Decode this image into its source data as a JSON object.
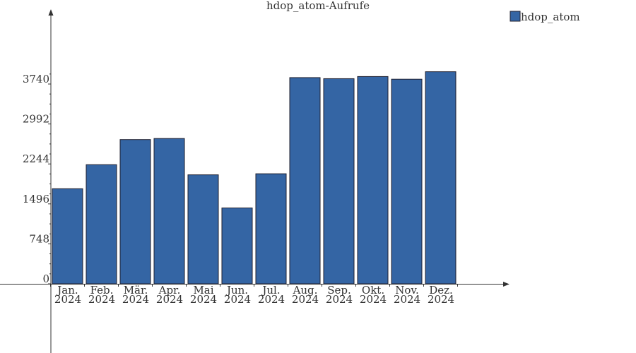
{
  "chart_data": {
    "type": "bar",
    "title": "hdop_atom-Aufrufe",
    "xlabel": "",
    "ylabel": "",
    "categories": [
      [
        "Jan.",
        "2024"
      ],
      [
        "Feb.",
        "2024"
      ],
      [
        "Mär.",
        "2024"
      ],
      [
        "Apr.",
        "2024"
      ],
      [
        "Mai",
        "2024"
      ],
      [
        "Jun.",
        "2024"
      ],
      [
        "Jul.",
        "2024"
      ],
      [
        "Aug.",
        "2024"
      ],
      [
        "Sep.",
        "2024"
      ],
      [
        "Okt.",
        "2024"
      ],
      [
        "Nov.",
        "2024"
      ],
      [
        "Dez.",
        "2024"
      ]
    ],
    "series": [
      {
        "name": "hdop_atom",
        "color": "#3465a4",
        "values": [
          1780,
          2230,
          2700,
          2720,
          2040,
          1420,
          2060,
          3860,
          3840,
          3880,
          3830,
          3970
        ]
      }
    ],
    "y_ticks": [
      0,
      748,
      1496,
      2244,
      2992,
      3740
    ],
    "ylim": [
      0,
      4100
    ],
    "grid": false,
    "legend_position": "top-right"
  }
}
